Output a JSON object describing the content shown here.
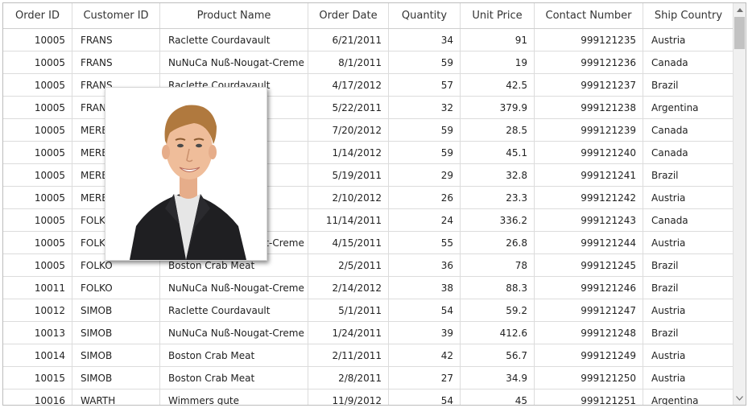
{
  "columns": [
    "Order ID",
    "Customer ID",
    "Product Name",
    "Order Date",
    "Quantity",
    "Unit Price",
    "Contact Number",
    "Ship Country"
  ],
  "rows": [
    [
      "10005",
      "FRANS",
      "Raclette Courdavault",
      "6/21/2011",
      "34",
      "91",
      "999121235",
      "Austria"
    ],
    [
      "10005",
      "FRANS",
      "NuNuCa Nuß-Nougat-Creme",
      "8/1/2011",
      "59",
      "19",
      "999121236",
      "Canada"
    ],
    [
      "10005",
      "FRANS",
      "Raclette Courdavault",
      "4/17/2012",
      "57",
      "42.5",
      "999121237",
      "Brazil"
    ],
    [
      "10005",
      "FRANS",
      "",
      "5/22/2011",
      "32",
      "379.9",
      "999121238",
      "Argentina"
    ],
    [
      "10005",
      "MEREP",
      "",
      "7/20/2012",
      "59",
      "28.5",
      "999121239",
      "Canada"
    ],
    [
      "10005",
      "MEREP",
      "",
      "1/14/2012",
      "59",
      "45.1",
      "999121240",
      "Canada"
    ],
    [
      "10005",
      "MEREP",
      "",
      "5/19/2011",
      "29",
      "32.8",
      "999121241",
      "Brazil"
    ],
    [
      "10005",
      "MEREP",
      "",
      "2/10/2012",
      "26",
      "23.3",
      "999121242",
      "Austria"
    ],
    [
      "10005",
      "FOLKO",
      "",
      "11/14/2011",
      "24",
      "336.2",
      "999121243",
      "Canada"
    ],
    [
      "10005",
      "FOLKO",
      "NuNuCa Nuß-Nougat-Creme",
      "4/15/2011",
      "55",
      "26.8",
      "999121244",
      "Austria"
    ],
    [
      "10005",
      "FOLKO",
      "Boston Crab Meat",
      "2/5/2011",
      "36",
      "78",
      "999121245",
      "Brazil"
    ],
    [
      "10011",
      "FOLKO",
      "NuNuCa Nuß-Nougat-Creme",
      "2/14/2012",
      "38",
      "88.3",
      "999121246",
      "Brazil"
    ],
    [
      "10012",
      "SIMOB",
      "Raclette Courdavault",
      "5/1/2011",
      "54",
      "59.2",
      "999121247",
      "Austria"
    ],
    [
      "10013",
      "SIMOB",
      "NuNuCa Nuß-Nougat-Creme",
      "1/24/2011",
      "39",
      "412.6",
      "999121248",
      "Brazil"
    ],
    [
      "10014",
      "SIMOB",
      "Boston Crab Meat",
      "2/11/2011",
      "42",
      "56.7",
      "999121249",
      "Austria"
    ],
    [
      "10015",
      "SIMOB",
      "Boston Crab Meat",
      "2/8/2011",
      "27",
      "34.9",
      "999121250",
      "Austria"
    ],
    [
      "10016",
      "WARTH",
      "Wimmers gute",
      "11/9/2012",
      "54",
      "45",
      "999121251",
      "Argentina"
    ]
  ],
  "colors": {
    "border": "#dcdcdc",
    "scrollbar_track": "#f0f0f0",
    "scrollbar_thumb": "#c2c2c2"
  },
  "icons": {
    "scroll_up": "chevron-up-icon",
    "scroll_down": "chevron-down-icon"
  }
}
